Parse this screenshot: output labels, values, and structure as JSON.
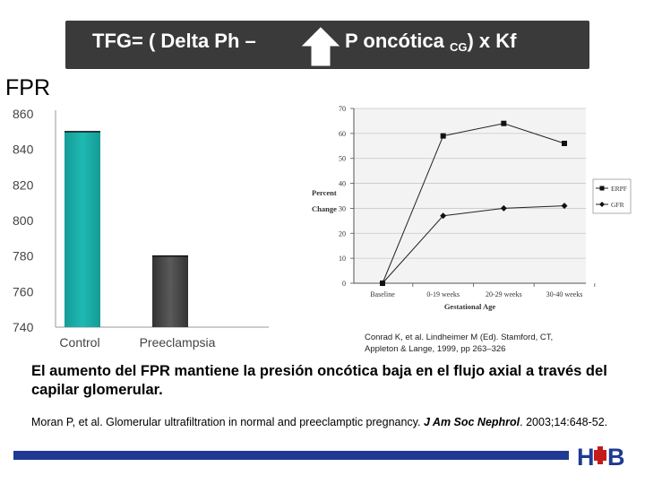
{
  "title": {
    "left": "TFG= ( Delta Ph –",
    "right_main": "P oncótica ",
    "right_sub": "CG",
    "right_end": ") x Kf"
  },
  "fpr_label": "FPR",
  "colors": {
    "title_bg": "#3a3a3a",
    "bar_control": "#1fb8b2",
    "bar_preeclampsia": "#5a5a5a",
    "bottom_bar": "#1f3a93"
  },
  "chart_data": [
    {
      "type": "bar",
      "categories": [
        "Control",
        "Preeclampsia"
      ],
      "values": [
        850,
        780
      ],
      "ylim": [
        740,
        860
      ],
      "yticks": [
        "860",
        "840",
        "820",
        "800",
        "780",
        "760",
        "740"
      ],
      "grid": false
    },
    {
      "type": "line",
      "x": [
        "Baseline",
        "0-19 weeks",
        "20-29 weeks",
        "30-40 weeks"
      ],
      "series": [
        {
          "name": "ERPF",
          "values": [
            0,
            59,
            64,
            56
          ]
        },
        {
          "name": "GFR",
          "values": [
            0,
            27,
            30,
            31
          ]
        }
      ],
      "ylabel_line1": "Percent",
      "ylabel_line2": "Change",
      "xlabel": "Gestational Age",
      "ylim": [
        0,
        70
      ],
      "yticks": [
        "0",
        "10",
        "20",
        "30",
        "40",
        "50",
        "60",
        "70"
      ],
      "legend_position": "right",
      "grid": true
    }
  ],
  "citation_small": {
    "line1": "Conrad K, et al. Lindheimer M (Ed). Stamford, CT,",
    "line2": "Appleton & Lange, 1999, pp 263–326"
  },
  "main_text": "El aumento del FPR mantiene la presión oncótica baja en el flujo axial a través del capilar glomerular.",
  "reference": {
    "start": "Moran P, et al. Glomerular ultrafiltration in normal and preeclamptic pregnancy. ",
    "journal": "J Am Soc Nephrol",
    "end": ". 2003;14:648-52."
  },
  "logo_text": "HB"
}
